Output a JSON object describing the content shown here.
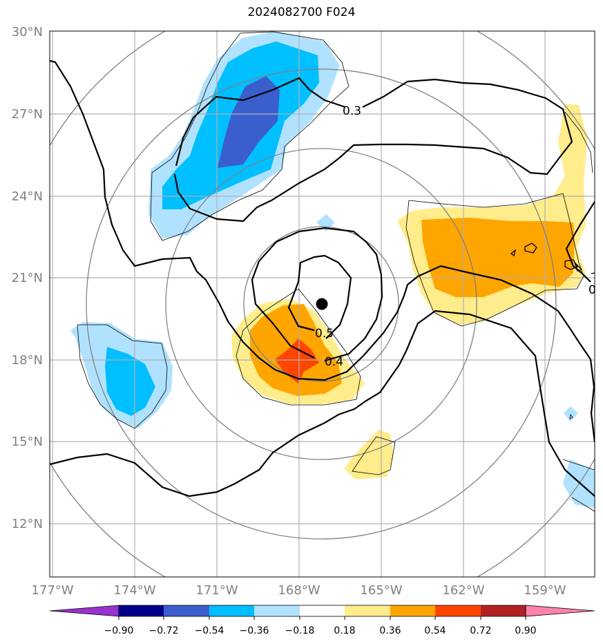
{
  "title": "2024082700 F024",
  "map": {
    "lat_labels": [
      "30°N",
      "27°N",
      "24°N",
      "21°N",
      "18°N",
      "15°N",
      "12°N"
    ],
    "lon_labels": [
      "177°W",
      "174°W",
      "171°W",
      "168°W",
      "165°W",
      "162°W",
      "159°W"
    ],
    "contour_labels": [
      "0.3",
      "0.5",
      "0.4",
      "0"
    ],
    "storm_center": "black-dot",
    "colors": {
      "grid": "#b0b0b0",
      "range_rings": "#808080",
      "contour": "#000000"
    }
  },
  "colorbar": {
    "tick_labels": [
      "−0.90",
      "−0.72",
      "−0.54",
      "−0.36",
      "−0.18",
      "0.18",
      "0.36",
      "0.54",
      "0.72",
      "0.90"
    ],
    "colors": [
      "#9932cc",
      "#00008b",
      "#3a5fcd",
      "#00bfff",
      "#b0e2ff",
      "#ffffff",
      "#ffec8b",
      "#ffa500",
      "#ff4500",
      "#b22222",
      "#ff82ab"
    ]
  }
}
